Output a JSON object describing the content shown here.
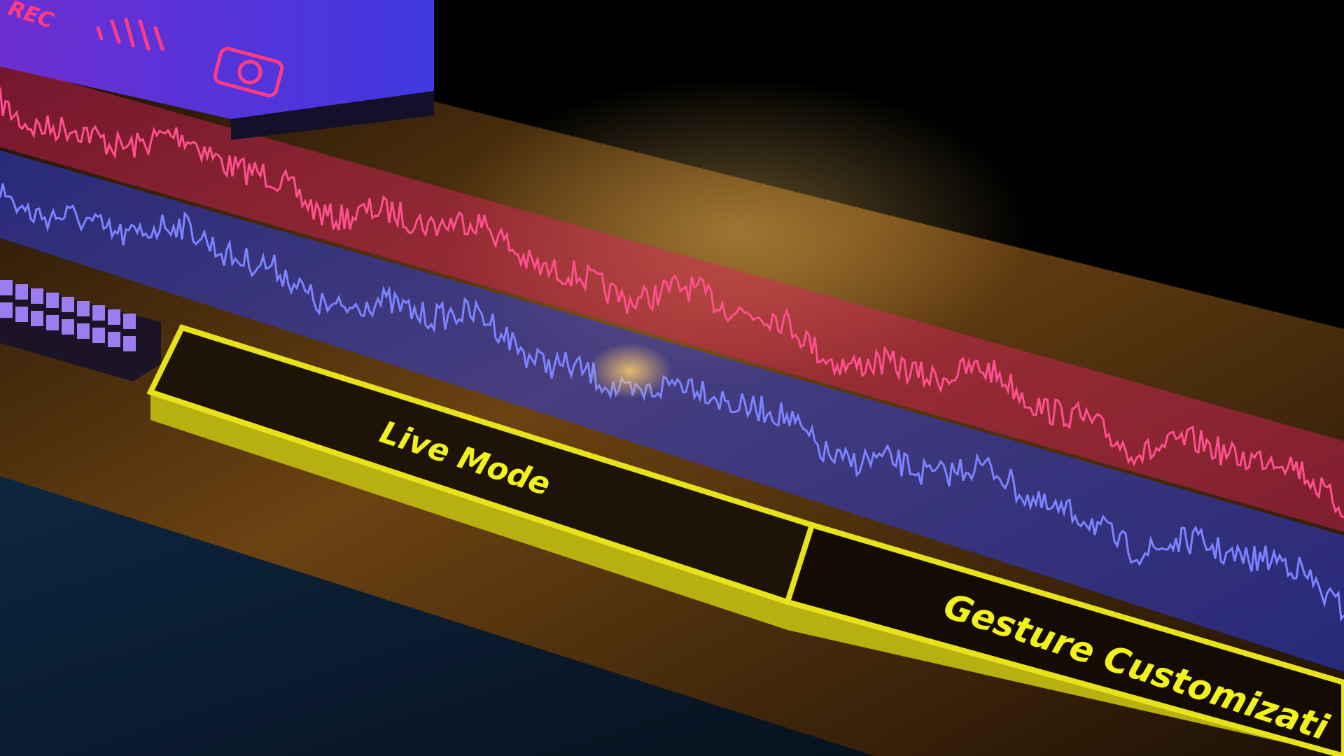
{
  "toolbar": {
    "rec": "REC"
  },
  "buttons": [
    {
      "label": "Live Mode"
    },
    {
      "label": "Gesture Customizati"
    }
  ]
}
